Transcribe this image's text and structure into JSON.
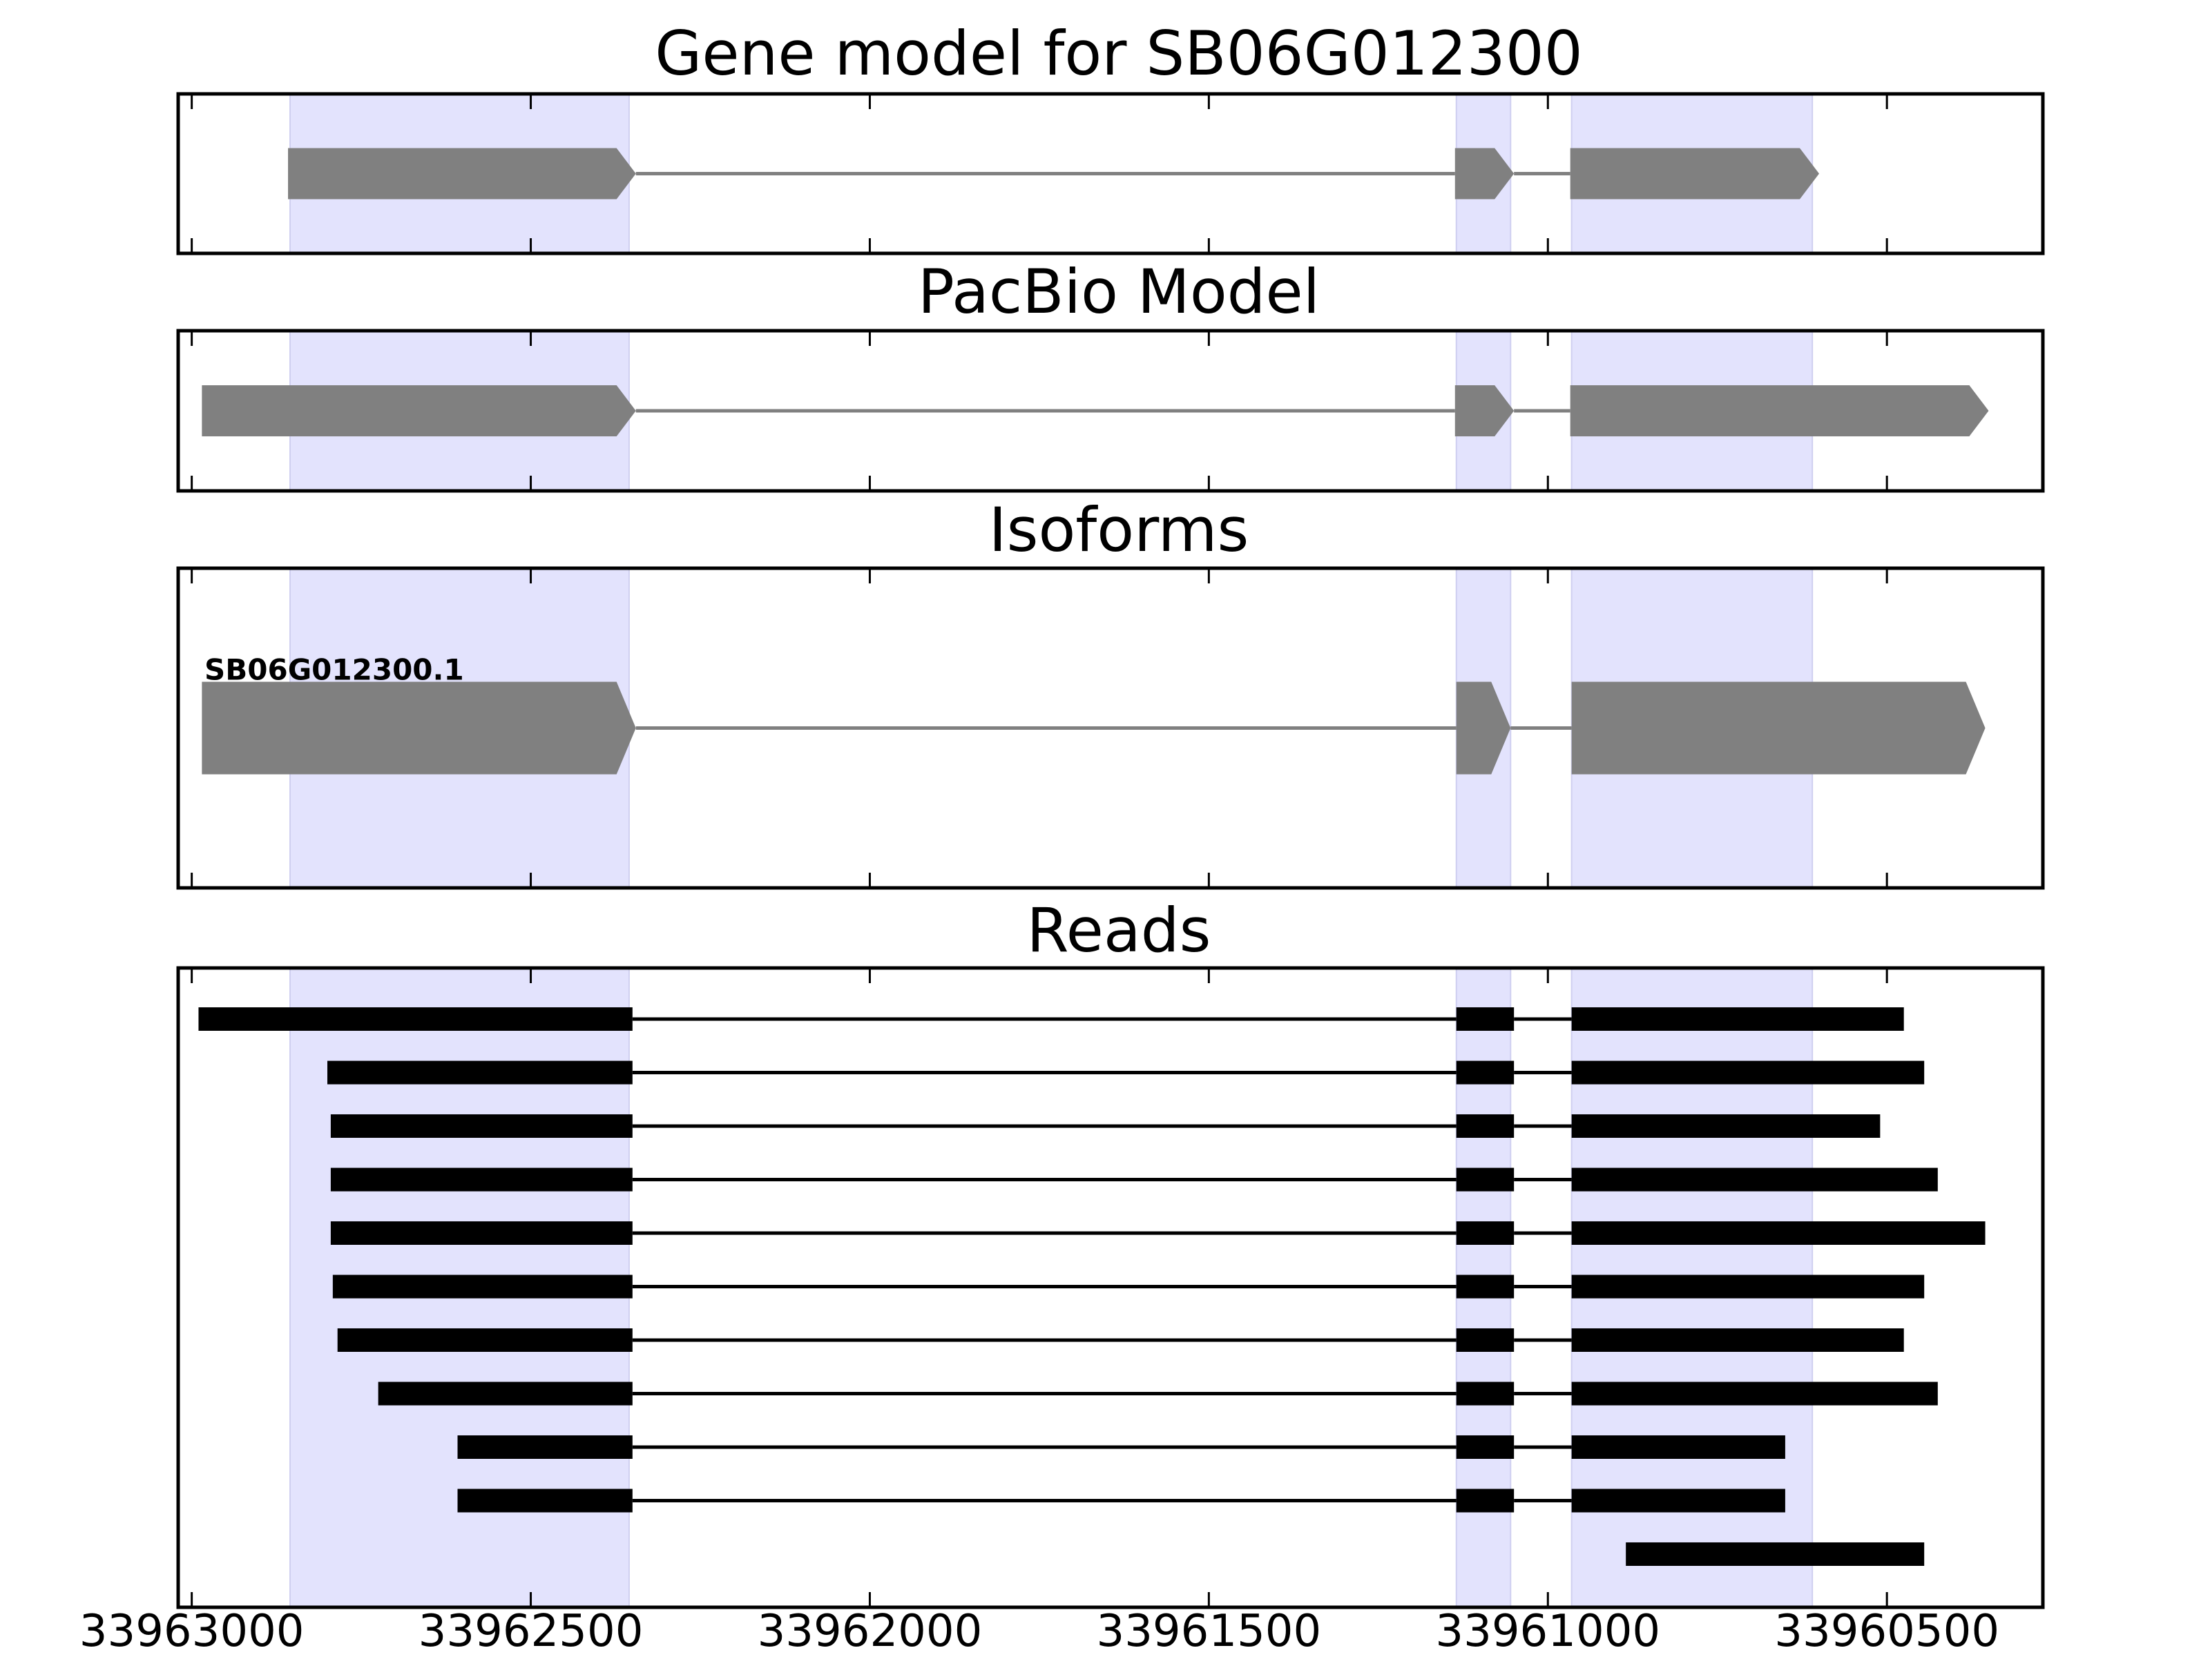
{
  "chart_data": {
    "type": "gene-track",
    "x_axis": {
      "range": [
        33963020,
        33960270
      ],
      "reversed": true,
      "ticks": [
        33963000,
        33962500,
        33962000,
        33961500,
        33961000,
        33960500
      ],
      "tick_labels": [
        "33963000",
        "33962500",
        "33962000",
        "33961500",
        "33961000",
        "33960500"
      ]
    },
    "highlight_regions": [
      [
        33962855,
        33962355
      ],
      [
        33961135,
        33961055
      ],
      [
        33960965,
        33960610
      ]
    ],
    "colors": {
      "highlight": "#e3e3fd",
      "exon_model": "#808080",
      "read": "#000000",
      "frame": "#000000"
    },
    "panels": [
      {
        "id": "gene-model",
        "title": "Gene model for SB06G012300",
        "tracks": [
          {
            "exons": [
              [
                33962858,
                33962345
              ],
              [
                33961137,
                33961050
              ],
              [
                33960967,
                33960600
              ]
            ]
          }
        ]
      },
      {
        "id": "pacbio-model",
        "title": "PacBio Model",
        "tracks": [
          {
            "exons": [
              [
                33962985,
                33962345
              ],
              [
                33961137,
                33961050
              ],
              [
                33960967,
                33960350
              ]
            ]
          }
        ]
      },
      {
        "id": "isoforms",
        "title": "Isoforms",
        "tracks": [
          {
            "label": "SB06G012300.1",
            "exons": [
              [
                33962985,
                33962345
              ],
              [
                33961135,
                33961055
              ],
              [
                33960965,
                33960355
              ]
            ]
          }
        ]
      },
      {
        "id": "reads",
        "title": "Reads",
        "tracks": [
          {
            "exons": [
              [
                33962990,
                33962350
              ],
              [
                33961135,
                33961050
              ],
              [
                33960965,
                33960475
              ]
            ]
          },
          {
            "exons": [
              [
                33962800,
                33962350
              ],
              [
                33961135,
                33961050
              ],
              [
                33960965,
                33960445
              ]
            ]
          },
          {
            "exons": [
              [
                33962795,
                33962350
              ],
              [
                33961135,
                33961050
              ],
              [
                33960965,
                33960510
              ]
            ]
          },
          {
            "exons": [
              [
                33962795,
                33962350
              ],
              [
                33961135,
                33961050
              ],
              [
                33960965,
                33960425
              ]
            ]
          },
          {
            "exons": [
              [
                33962795,
                33962350
              ],
              [
                33961135,
                33961050
              ],
              [
                33960965,
                33960355
              ]
            ]
          },
          {
            "exons": [
              [
                33962792,
                33962350
              ],
              [
                33961135,
                33961050
              ],
              [
                33960965,
                33960445
              ]
            ]
          },
          {
            "exons": [
              [
                33962785,
                33962350
              ],
              [
                33961135,
                33961050
              ],
              [
                33960965,
                33960475
              ]
            ]
          },
          {
            "exons": [
              [
                33962725,
                33962350
              ],
              [
                33961135,
                33961050
              ],
              [
                33960965,
                33960425
              ]
            ]
          },
          {
            "exons": [
              [
                33962608,
                33962350
              ],
              [
                33961135,
                33961050
              ],
              [
                33960965,
                33960650
              ]
            ]
          },
          {
            "exons": [
              [
                33962608,
                33962350
              ],
              [
                33961135,
                33961050
              ],
              [
                33960965,
                33960650
              ]
            ]
          },
          {
            "exons": [
              [
                33960885,
                33960445
              ]
            ]
          }
        ]
      }
    ]
  }
}
